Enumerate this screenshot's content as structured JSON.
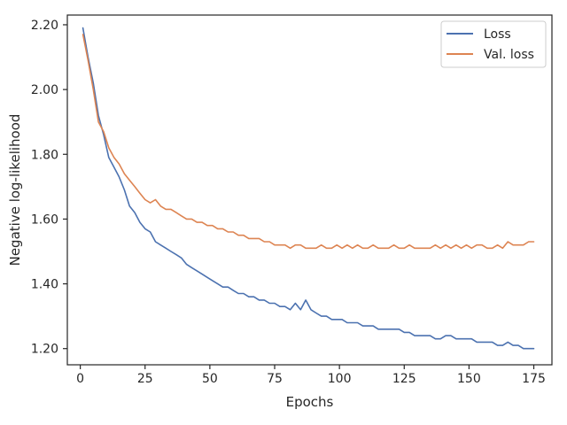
{
  "chart_data": {
    "type": "line",
    "title": "",
    "xlabel": "Epochs",
    "ylabel": "Negative log-likelihood",
    "xlim": [
      -5,
      182
    ],
    "ylim": [
      1.15,
      2.23
    ],
    "x_ticks": [
      0,
      25,
      50,
      75,
      100,
      125,
      150,
      175
    ],
    "x_tick_labels": [
      "0",
      "25",
      "50",
      "75",
      "100",
      "125",
      "150",
      "175"
    ],
    "y_ticks": [
      1.2,
      1.4,
      1.6,
      1.8,
      2.0,
      2.2
    ],
    "y_tick_labels": [
      "1.20",
      "1.40",
      "1.60",
      "1.80",
      "2.00",
      "2.20"
    ],
    "grid": false,
    "legend_position": "top-right",
    "series": [
      {
        "name": "Loss",
        "color": "#4c72b0",
        "x": [
          1,
          3,
          5,
          7,
          9,
          11,
          13,
          15,
          17,
          19,
          21,
          23,
          25,
          27,
          29,
          31,
          33,
          35,
          37,
          39,
          41,
          43,
          45,
          47,
          49,
          51,
          53,
          55,
          57,
          59,
          61,
          63,
          65,
          67,
          69,
          71,
          73,
          75,
          77,
          79,
          81,
          83,
          85,
          87,
          89,
          91,
          93,
          95,
          97,
          99,
          101,
          103,
          105,
          107,
          109,
          111,
          113,
          115,
          117,
          119,
          121,
          123,
          125,
          127,
          129,
          131,
          133,
          135,
          137,
          139,
          141,
          143,
          145,
          147,
          149,
          151,
          153,
          155,
          157,
          159,
          161,
          163,
          165,
          167,
          169,
          171,
          173,
          175
        ],
        "y": [
          2.19,
          2.1,
          2.02,
          1.92,
          1.86,
          1.79,
          1.76,
          1.73,
          1.69,
          1.64,
          1.62,
          1.59,
          1.57,
          1.56,
          1.53,
          1.52,
          1.51,
          1.5,
          1.49,
          1.48,
          1.46,
          1.45,
          1.44,
          1.43,
          1.42,
          1.41,
          1.4,
          1.39,
          1.39,
          1.38,
          1.37,
          1.37,
          1.36,
          1.36,
          1.35,
          1.35,
          1.34,
          1.34,
          1.33,
          1.33,
          1.32,
          1.34,
          1.32,
          1.35,
          1.32,
          1.31,
          1.3,
          1.3,
          1.29,
          1.29,
          1.29,
          1.28,
          1.28,
          1.28,
          1.27,
          1.27,
          1.27,
          1.26,
          1.26,
          1.26,
          1.26,
          1.26,
          1.25,
          1.25,
          1.24,
          1.24,
          1.24,
          1.24,
          1.23,
          1.23,
          1.24,
          1.24,
          1.23,
          1.23,
          1.23,
          1.23,
          1.22,
          1.22,
          1.22,
          1.22,
          1.21,
          1.21,
          1.22,
          1.21,
          1.21,
          1.2,
          1.2,
          1.2
        ]
      },
      {
        "name": "Val. loss",
        "color": "#dd8452",
        "x": [
          1,
          3,
          5,
          7,
          9,
          11,
          13,
          15,
          17,
          19,
          21,
          23,
          25,
          27,
          29,
          31,
          33,
          35,
          37,
          39,
          41,
          43,
          45,
          47,
          49,
          51,
          53,
          55,
          57,
          59,
          61,
          63,
          65,
          67,
          69,
          71,
          73,
          75,
          77,
          79,
          81,
          83,
          85,
          87,
          89,
          91,
          93,
          95,
          97,
          99,
          101,
          103,
          105,
          107,
          109,
          111,
          113,
          115,
          117,
          119,
          121,
          123,
          125,
          127,
          129,
          131,
          133,
          135,
          137,
          139,
          141,
          143,
          145,
          147,
          149,
          151,
          153,
          155,
          157,
          159,
          161,
          163,
          165,
          167,
          169,
          171,
          173,
          175
        ],
        "y": [
          2.17,
          2.09,
          2.0,
          1.9,
          1.87,
          1.82,
          1.79,
          1.77,
          1.74,
          1.72,
          1.7,
          1.68,
          1.66,
          1.65,
          1.66,
          1.64,
          1.63,
          1.63,
          1.62,
          1.61,
          1.6,
          1.6,
          1.59,
          1.59,
          1.58,
          1.58,
          1.57,
          1.57,
          1.56,
          1.56,
          1.55,
          1.55,
          1.54,
          1.54,
          1.54,
          1.53,
          1.53,
          1.52,
          1.52,
          1.52,
          1.51,
          1.52,
          1.52,
          1.51,
          1.51,
          1.51,
          1.52,
          1.51,
          1.51,
          1.52,
          1.51,
          1.52,
          1.51,
          1.52,
          1.51,
          1.51,
          1.52,
          1.51,
          1.51,
          1.51,
          1.52,
          1.51,
          1.51,
          1.52,
          1.51,
          1.51,
          1.51,
          1.51,
          1.52,
          1.51,
          1.52,
          1.51,
          1.52,
          1.51,
          1.52,
          1.51,
          1.52,
          1.52,
          1.51,
          1.51,
          1.52,
          1.51,
          1.53,
          1.52,
          1.52,
          1.52,
          1.53,
          1.53
        ]
      }
    ]
  }
}
